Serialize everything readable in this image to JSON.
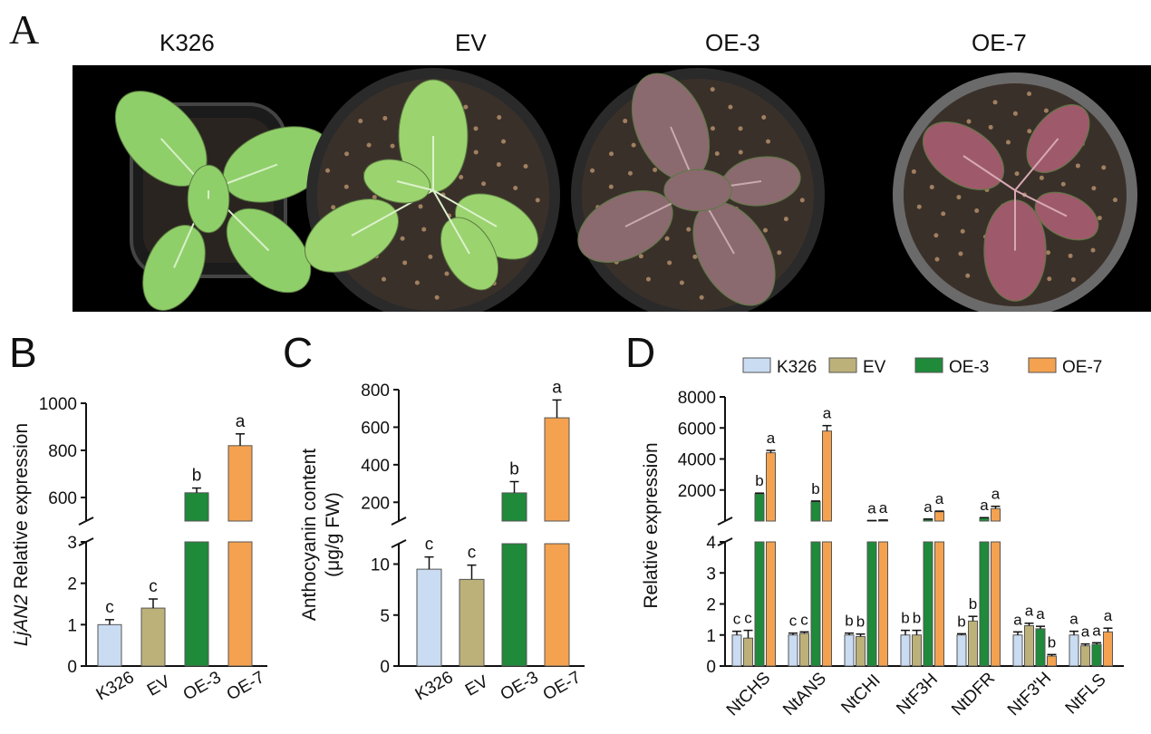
{
  "panel_a": {
    "letter": "A",
    "titles": [
      "K326",
      "EV",
      "OE-3",
      "OE-7"
    ],
    "plants": [
      {
        "name": "K326",
        "pot": "square-black",
        "leaf": "#8fcf6a",
        "vein": "#d8f0c8"
      },
      {
        "name": "EV",
        "pot": "round-black",
        "leaf": "#9bd36f",
        "vein": "#dcf2cc"
      },
      {
        "name": "OE-3",
        "pot": "round-black",
        "leaf": "#8a6a6e",
        "vein": "#caa8b0"
      },
      {
        "name": "OE-7",
        "pot": "round-gray",
        "leaf": "#9e5a6a",
        "vein": "#d8a8b4"
      }
    ]
  },
  "colors": {
    "K326": "#c9dcf2",
    "EV": "#bdb17a",
    "OE-3": "#1e8a3a",
    "OE-7": "#f4a24f"
  },
  "chart_data": [
    {
      "panel": "B",
      "type": "bar",
      "ylabel_italic": "LjAN2",
      "ylabel_rest": " Relative expression",
      "categories": [
        "K326",
        "EV",
        "OE-3",
        "OE-7"
      ],
      "values": [
        1.0,
        1.4,
        620,
        820
      ],
      "errors": [
        0.12,
        0.22,
        20,
        50
      ],
      "letters": [
        "c",
        "c",
        "b",
        "a"
      ],
      "axis_broken": true,
      "lower_range": [
        0,
        3
      ],
      "upper_range": [
        500,
        1000
      ],
      "lower_ticks": [
        0,
        1,
        2,
        3
      ],
      "upper_ticks": [
        600,
        800,
        1000
      ]
    },
    {
      "panel": "C",
      "type": "bar",
      "ylabel_line1": "Anthocyanin content",
      "ylabel_line2": "(μg/g FW)",
      "categories": [
        "K326",
        "EV",
        "OE-3",
        "OE-7"
      ],
      "values": [
        9.5,
        8.5,
        250,
        650
      ],
      "errors": [
        1.2,
        1.4,
        60,
        95
      ],
      "letters": [
        "c",
        "c",
        "b",
        "a"
      ],
      "axis_broken": true,
      "lower_range": [
        0,
        12
      ],
      "upper_range": [
        100,
        800
      ],
      "lower_ticks": [
        0,
        5,
        10
      ],
      "upper_ticks": [
        200,
        400,
        600,
        800
      ]
    },
    {
      "panel": "D",
      "type": "bar",
      "ylabel": "Relative expression",
      "categories": [
        "NtCHS",
        "NtANS",
        "NtCHI",
        "NtF3H",
        "NtDFR",
        "NtF3'H",
        "NtFLS"
      ],
      "series": [
        {
          "name": "K326",
          "values": [
            1.0,
            1.0,
            1.0,
            1.0,
            1.0,
            1.0,
            1.0
          ],
          "errors": [
            0.12,
            0.06,
            0.06,
            0.15,
            0.04,
            0.1,
            0.12
          ],
          "letters": [
            "c",
            "c",
            "b",
            "b",
            "b",
            "a",
            "a"
          ]
        },
        {
          "name": "EV",
          "values": [
            0.9,
            1.05,
            0.95,
            1.0,
            1.45,
            1.3,
            0.65
          ],
          "errors": [
            0.25,
            0.05,
            0.08,
            0.15,
            0.15,
            0.08,
            0.06
          ],
          "letters": [
            "c",
            "c",
            "b",
            "b",
            "b",
            "a",
            "a"
          ]
        },
        {
          "name": "OE-3",
          "values": [
            1750,
            1250,
            30,
            120,
            200,
            1.2,
            0.7
          ],
          "errors": [
            50,
            40,
            5,
            10,
            20,
            0.08,
            0.05
          ],
          "letters": [
            "b",
            "b",
            "a",
            "a",
            "a",
            "a",
            "a"
          ]
        },
        {
          "name": "OE-7",
          "values": [
            4400,
            5800,
            60,
            600,
            800,
            0.32,
            1.1
          ],
          "errors": [
            150,
            350,
            8,
            40,
            150,
            0.05,
            0.12
          ],
          "letters": [
            "a",
            "a",
            "a",
            "a",
            "a",
            "b",
            "a"
          ]
        }
      ],
      "axis_broken": true,
      "lower_range": [
        0,
        4
      ],
      "upper_range": [
        0,
        8000
      ],
      "lower_ticks": [
        0,
        1,
        2,
        3,
        4
      ],
      "upper_ticks": [
        2000,
        4000,
        6000,
        8000
      ]
    }
  ]
}
